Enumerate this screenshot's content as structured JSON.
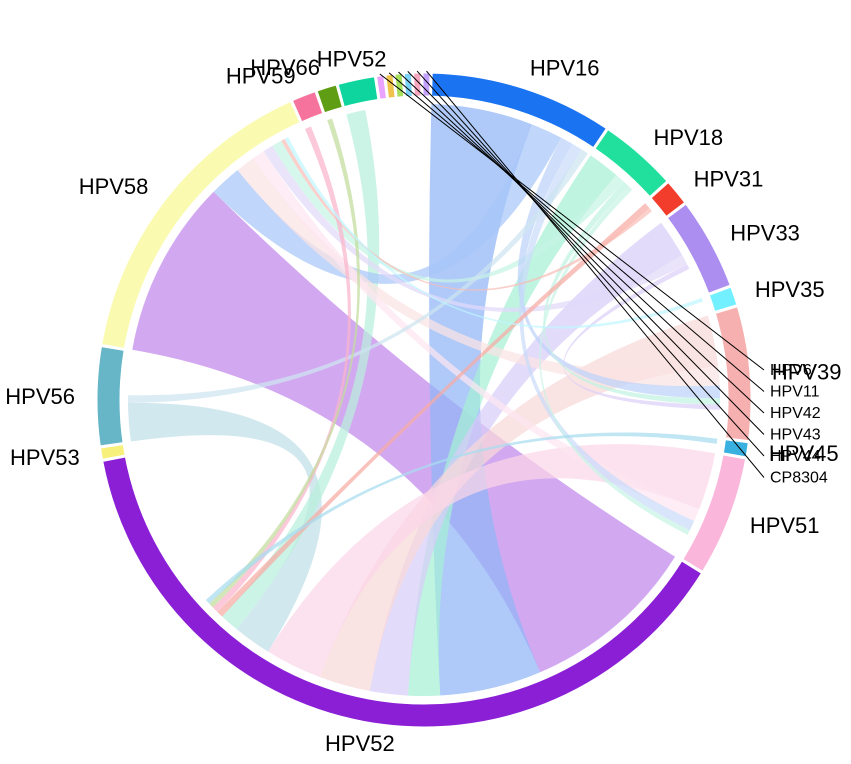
{
  "chart_data": {
    "type": "chord",
    "segments": [
      {
        "name": "HPV58",
        "value": 22.5,
        "color": "#fafab0",
        "labelStyle": "large"
      },
      {
        "name": "HPV59",
        "value": 1.7,
        "color": "#f5739c",
        "labelStyle": "large"
      },
      {
        "name": "HPV66",
        "value": 1.4,
        "color": "#5f9e14",
        "labelStyle": "large"
      },
      {
        "name": "HPV52",
        "value": 2.6,
        "color": "#0ed49e",
        "labelStyle": "large"
      },
      {
        "name": "HPV6",
        "value": 0.5,
        "color": "#eaa3ff",
        "labelStyle": "small"
      },
      {
        "name": "HPV11",
        "value": 0.5,
        "color": "#f0c34c",
        "labelStyle": "small"
      },
      {
        "name": "HPV42",
        "value": 0.5,
        "color": "#a7e05b",
        "labelStyle": "small"
      },
      {
        "name": "HPV43",
        "value": 0.5,
        "color": "#7bd3f7",
        "labelStyle": "small"
      },
      {
        "name": "HPV44",
        "value": 0.5,
        "color": "#f7a8c0",
        "labelStyle": "small"
      },
      {
        "name": "CP8304",
        "value": 0.5,
        "color": "#c4a3ff",
        "labelStyle": "small"
      },
      {
        "name": "HPV16",
        "value": 13.0,
        "color": "#1a73f0",
        "labelStyle": "large"
      },
      {
        "name": "HPV18",
        "value": 5.5,
        "color": "#21e09e",
        "labelStyle": "large"
      },
      {
        "name": "HPV31",
        "value": 1.8,
        "color": "#f23d2c",
        "labelStyle": "large"
      },
      {
        "name": "HPV33",
        "value": 6.5,
        "color": "#ab8ef0",
        "labelStyle": "large"
      },
      {
        "name": "HPV35",
        "value": 1.3,
        "color": "#73f0ff",
        "labelStyle": "large"
      },
      {
        "name": "HPV39",
        "value": 9.5,
        "color": "#f6b0b0",
        "labelStyle": "large"
      },
      {
        "name": "HPV45",
        "value": 1.0,
        "color": "#38b0e0",
        "labelStyle": "large"
      },
      {
        "name": "HPV51",
        "value": 8.5,
        "color": "#fbb6dc",
        "labelStyle": "large"
      },
      {
        "name": "HPV52",
        "value": 55.0,
        "color": "#8a1fd6",
        "labelStyle": "large"
      },
      {
        "name": "HPV53",
        "value": 0.8,
        "color": "#f7f07a",
        "labelStyle": "large"
      },
      {
        "name": "HPV56",
        "value": 7.0,
        "color": "#66b6c8",
        "labelStyle": "large"
      }
    ],
    "ribbons": [
      {
        "source": "HPV52",
        "target": "HPV58",
        "value": 14.0,
        "color": "#c088ec"
      },
      {
        "source": "HPV52",
        "target": "HPV16",
        "value": 8.0,
        "color": "#90b6f6"
      },
      {
        "source": "HPV52",
        "target": "HPV18",
        "value": 2.5,
        "color": "#a6f0d6"
      },
      {
        "source": "HPV52",
        "target": "HPV33",
        "value": 3.0,
        "color": "#d8cdf8"
      },
      {
        "source": "HPV52",
        "target": "HPV39",
        "value": 4.0,
        "color": "#f8d8d8"
      },
      {
        "source": "HPV52",
        "target": "HPV51",
        "value": 4.5,
        "color": "#fbd6e8"
      },
      {
        "source": "HPV52",
        "target": "HPV56",
        "value": 3.0,
        "color": "#bfdfe8"
      },
      {
        "source": "HPV52",
        "target": "HPV52",
        "value": 1.5,
        "color": "#b8f0dc"
      },
      {
        "source": "HPV58",
        "target": "HPV16",
        "value": 2.5,
        "color": "#a8c6f8"
      },
      {
        "source": "HPV58",
        "target": "HPV39",
        "value": 1.5,
        "color": "#fbe3e3"
      },
      {
        "source": "HPV58",
        "target": "HPV51",
        "value": 1.0,
        "color": "#fde6f1"
      },
      {
        "source": "HPV58",
        "target": "HPV33",
        "value": 0.8,
        "color": "#e2daf9"
      },
      {
        "source": "HPV58",
        "target": "HPV18",
        "value": 0.8,
        "color": "#c6f4e4"
      },
      {
        "source": "HPV16",
        "target": "HPV39",
        "value": 1.0,
        "color": "#bcd2fa"
      },
      {
        "source": "HPV16",
        "target": "HPV51",
        "value": 0.8,
        "color": "#c9dbfa"
      },
      {
        "source": "HPV16",
        "target": "HPV56",
        "value": 0.6,
        "color": "#cde4f0"
      },
      {
        "source": "HPV18",
        "target": "HPV39",
        "value": 0.5,
        "color": "#c2f2e2"
      },
      {
        "source": "HPV18",
        "target": "HPV51",
        "value": 0.4,
        "color": "#c8f4e6"
      },
      {
        "source": "HPV31",
        "target": "HPV52",
        "value": 0.5,
        "color": "#f7aaa2"
      },
      {
        "source": "HPV31",
        "target": "HPV58",
        "value": 0.3,
        "color": "#f9bdb6"
      },
      {
        "source": "HPV59",
        "target": "HPV52",
        "value": 0.5,
        "color": "#f9b4ca"
      },
      {
        "source": "HPV66",
        "target": "HPV52",
        "value": 0.4,
        "color": "#c2dc9c"
      },
      {
        "source": "HPV33",
        "target": "HPV39",
        "value": 0.4,
        "color": "#ddd0f8"
      },
      {
        "source": "HPV45",
        "target": "HPV52",
        "value": 0.4,
        "color": "#a8dcf0"
      },
      {
        "source": "HPV35",
        "target": "HPV58",
        "value": 0.3,
        "color": "#bff7ff"
      }
    ]
  }
}
